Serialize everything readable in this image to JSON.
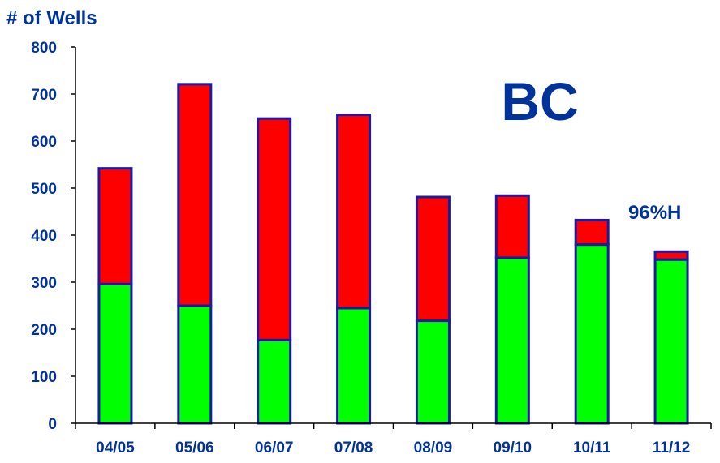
{
  "colors": {
    "text": "#003399",
    "axis": "#003399",
    "bar_outline": "#1a1aa6",
    "series_bottom": "#00ff00",
    "series_top": "#ff0000",
    "background": "#ffffff"
  },
  "chart_data": {
    "type": "bar",
    "stacked": true,
    "title": "BC",
    "ylabel": "# of Wells",
    "xlabel": "",
    "annotation": "96%H",
    "categories": [
      "04/05",
      "05/06",
      "06/07",
      "07/08",
      "08/09",
      "09/10",
      "10/11",
      "11/12"
    ],
    "series": [
      {
        "color": "#00ff00",
        "values": [
          296,
          250,
          177,
          245,
          218,
          352,
          380,
          348
        ]
      },
      {
        "color": "#ff0000",
        "values": [
          246,
          471,
          471,
          411,
          263,
          132,
          52,
          17
        ]
      }
    ],
    "ylim": [
      0,
      800
    ],
    "yticks": [
      0,
      100,
      200,
      300,
      400,
      500,
      600,
      700,
      800
    ],
    "grid": false,
    "legend": "none"
  }
}
